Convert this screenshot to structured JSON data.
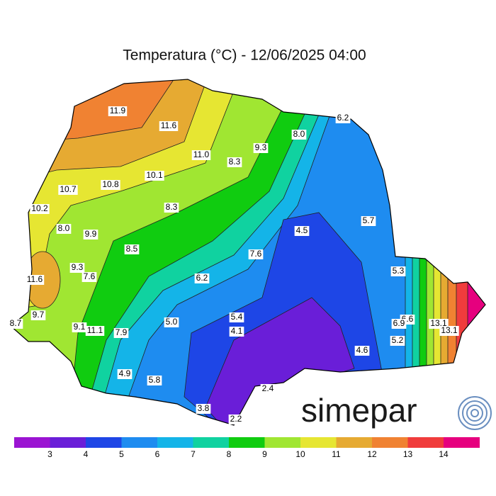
{
  "title": "Temperatura (°C) - 12/06/2025 04:00",
  "labels": [
    "11.9",
    "11.6",
    "11.0",
    "9.3",
    "8.0",
    "6.2",
    "8.3",
    "10.1",
    "10.8",
    "10.7",
    "10.2",
    "8.3",
    "8.0",
    "9.9",
    "4.5",
    "5.7",
    "8.5",
    "7.6",
    "9.3",
    "7.6",
    "11.6",
    "6.2",
    "5.3",
    "9.7",
    "8.7",
    "9.1",
    "11.1",
    "7.9",
    "5.0",
    "5.4",
    "4.1",
    "6.6",
    "6.9",
    "13.1",
    "13.1",
    "5.2",
    "4.6",
    "4.9",
    "5.8",
    "2.4",
    "3.8",
    "2.2"
  ],
  "legend": {
    "ticks": [
      3,
      4,
      5,
      6,
      7,
      8,
      9,
      10,
      11,
      12,
      13,
      14
    ],
    "colors": [
      "#9b14d2",
      "#6a1ed8",
      "#1e46e6",
      "#1e8cf0",
      "#14b4e8",
      "#10d2a0",
      "#10cc10",
      "#a0e632",
      "#e6e632",
      "#e6aa32",
      "#f08232",
      "#f03c3c",
      "#e6007e"
    ]
  },
  "logo": "simepar"
}
